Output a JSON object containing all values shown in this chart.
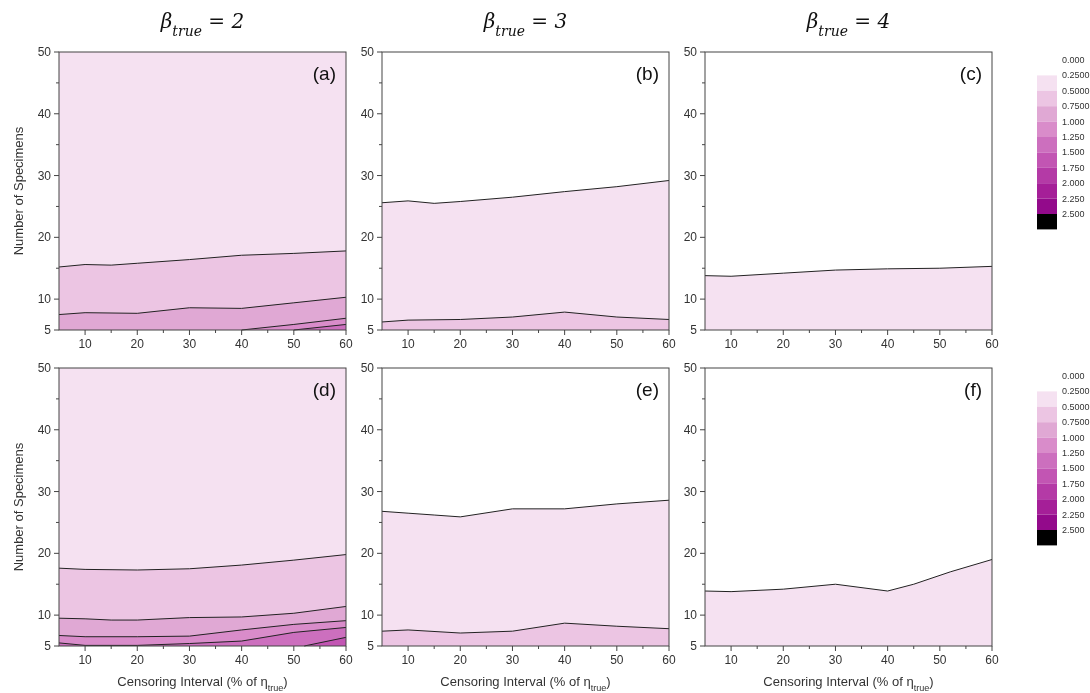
{
  "chart_data": [
    {
      "type": "area",
      "title": "β$_{true}$ = 2",
      "ylabel": "Number of Specimens",
      "annotations": [
        "(a)"
      ],
      "bands": [
        {
          "axis": "y",
          "from": 5,
          "to": 50,
          "color": "#f5e1f1"
        }
      ],
      "xlim": [
        5,
        60
      ],
      "xticks": [
        10,
        {
          "value": 15,
          "label": null
        },
        20,
        {
          "value": 25,
          "label": null
        },
        30,
        {
          "value": 35,
          "label": null
        },
        40,
        {
          "value": 45,
          "label": null
        },
        50,
        {
          "value": 55,
          "label": null
        },
        60
      ],
      "ylim": [
        5,
        50
      ],
      "yticks": [
        5,
        10,
        {
          "value": 15,
          "label": null
        },
        20,
        {
          "value": 25,
          "label": null
        },
        30,
        {
          "value": 35,
          "label": null
        },
        40,
        {
          "value": 45,
          "label": null
        },
        50
      ],
      "series": [
        {
          "color": "#ecc5e3",
          "x": [
            5,
            10,
            15,
            20,
            30,
            40,
            50,
            60
          ],
          "values": [
            15.2,
            15.6,
            15.5,
            15.8,
            16.4,
            17.1,
            17.4,
            17.8
          ]
        },
        {
          "color": "#e0a8d4",
          "x": [
            5,
            10,
            20,
            30,
            40,
            50,
            60
          ],
          "values": [
            7.5,
            7.8,
            7.7,
            8.6,
            8.5,
            9.4,
            10.3
          ]
        },
        {
          "color": "#d98cca",
          "x": [
            40,
            50,
            60
          ],
          "values": [
            5.0,
            5.9,
            6.9
          ]
        },
        {
          "color": "#cc6fbe",
          "x": [
            50,
            60
          ],
          "values": [
            5.0,
            5.9
          ]
        }
      ]
    },
    {
      "type": "area",
      "title": "β$_{true}$ = 3",
      "annotations": [
        "(b)"
      ],
      "xlim": [
        5,
        60
      ],
      "xticks": [
        10,
        {
          "value": 15,
          "label": null
        },
        20,
        {
          "value": 25,
          "label": null
        },
        30,
        {
          "value": 35,
          "label": null
        },
        40,
        {
          "value": 45,
          "label": null
        },
        50,
        {
          "value": 55,
          "label": null
        },
        60
      ],
      "ylim": [
        5,
        50
      ],
      "yticks": [
        5,
        10,
        {
          "value": 15,
          "label": null
        },
        20,
        {
          "value": 25,
          "label": null
        },
        30,
        {
          "value": 35,
          "label": null
        },
        40,
        {
          "value": 45,
          "label": null
        },
        50
      ],
      "series": [
        {
          "color": "#f5e1f1",
          "x": [
            5,
            10,
            15,
            20,
            30,
            40,
            50,
            60
          ],
          "values": [
            25.6,
            25.9,
            25.5,
            25.8,
            26.5,
            27.4,
            28.2,
            29.2
          ]
        },
        {
          "color": "#ecc5e3",
          "x": [
            5,
            10,
            20,
            30,
            40,
            50,
            60
          ],
          "values": [
            6.3,
            6.6,
            6.7,
            7.1,
            7.9,
            7.1,
            6.7
          ]
        }
      ]
    },
    {
      "type": "area",
      "title": "β$_{true}$ = 4",
      "annotations": [
        "(c)"
      ],
      "xlim": [
        5,
        60
      ],
      "xticks": [
        10,
        {
          "value": 15,
          "label": null
        },
        20,
        {
          "value": 25,
          "label": null
        },
        30,
        {
          "value": 35,
          "label": null
        },
        40,
        {
          "value": 45,
          "label": null
        },
        50,
        {
          "value": 55,
          "label": null
        },
        60
      ],
      "ylim": [
        5,
        50
      ],
      "yticks": [
        5,
        10,
        {
          "value": 15,
          "label": null
        },
        20,
        {
          "value": 25,
          "label": null
        },
        30,
        {
          "value": 35,
          "label": null
        },
        40,
        {
          "value": 45,
          "label": null
        },
        50
      ],
      "clim": [
        0,
        2.75
      ],
      "cticks": [
        {
          "value": 0,
          "label": "0.000"
        },
        {
          "value": 0.25,
          "label": "0.2500"
        },
        {
          "value": 0.5,
          "label": "0.5000"
        },
        {
          "value": 0.75,
          "label": "0.7500"
        },
        {
          "value": 1,
          "label": "1.000"
        },
        {
          "value": 1.25,
          "label": "1.250"
        },
        {
          "value": 1.5,
          "label": "1.500"
        },
        {
          "value": 1.75,
          "label": "1.750"
        },
        {
          "value": 2,
          "label": "2.000"
        },
        {
          "value": 2.25,
          "label": "2.250"
        },
        {
          "value": 2.5,
          "label": "2.500"
        }
      ],
      "series": [
        {
          "color": "#f5e1f1",
          "x": [
            5,
            10,
            20,
            30,
            40,
            50,
            60
          ],
          "values": [
            13.8,
            13.7,
            14.2,
            14.7,
            14.9,
            15.0,
            15.3
          ]
        }
      ]
    },
    {
      "type": "area",
      "xlabel": "Censoring Interval (% of η$_{true}$)",
      "ylabel": "Number of Specimens",
      "annotations": [
        "(d)"
      ],
      "bands": [
        {
          "axis": "y",
          "from": 5,
          "to": 50,
          "color": "#f5e1f1"
        }
      ],
      "xlim": [
        5,
        60
      ],
      "xticks": [
        10,
        {
          "value": 15,
          "label": null
        },
        20,
        {
          "value": 25,
          "label": null
        },
        30,
        {
          "value": 35,
          "label": null
        },
        40,
        {
          "value": 45,
          "label": null
        },
        50,
        {
          "value": 55,
          "label": null
        },
        60
      ],
      "ylim": [
        5,
        50
      ],
      "yticks": [
        5,
        10,
        {
          "value": 15,
          "label": null
        },
        20,
        {
          "value": 25,
          "label": null
        },
        30,
        {
          "value": 35,
          "label": null
        },
        40,
        {
          "value": 45,
          "label": null
        },
        50
      ],
      "series": [
        {
          "color": "#ecc5e3",
          "x": [
            5,
            10,
            20,
            30,
            40,
            50,
            60
          ],
          "values": [
            17.6,
            17.4,
            17.3,
            17.5,
            18.1,
            18.9,
            19.8
          ]
        },
        {
          "color": "#e0a8d4",
          "x": [
            5,
            10,
            15,
            20,
            30,
            40,
            50,
            60
          ],
          "values": [
            9.5,
            9.4,
            9.2,
            9.2,
            9.6,
            9.7,
            10.3,
            11.4
          ]
        },
        {
          "color": "#d98cca",
          "x": [
            5,
            10,
            20,
            30,
            40,
            50,
            60
          ],
          "values": [
            6.7,
            6.5,
            6.5,
            6.6,
            7.6,
            8.5,
            9.1
          ]
        },
        {
          "color": "#cc6fbe",
          "x": [
            5,
            10,
            20,
            30,
            40,
            50,
            60
          ],
          "values": [
            5.5,
            5.1,
            5.1,
            5.4,
            5.8,
            7.2,
            8.0
          ]
        },
        {
          "color": "#c255b3",
          "x": [
            52,
            60
          ],
          "values": [
            5.0,
            6.4
          ]
        }
      ]
    },
    {
      "type": "area",
      "xlabel": "Censoring Interval (% of η$_{true}$)",
      "annotations": [
        "(e)"
      ],
      "xlim": [
        5,
        60
      ],
      "xticks": [
        10,
        {
          "value": 15,
          "label": null
        },
        20,
        {
          "value": 25,
          "label": null
        },
        30,
        {
          "value": 35,
          "label": null
        },
        40,
        {
          "value": 45,
          "label": null
        },
        50,
        {
          "value": 55,
          "label": null
        },
        60
      ],
      "ylim": [
        5,
        50
      ],
      "yticks": [
        5,
        10,
        {
          "value": 15,
          "label": null
        },
        20,
        {
          "value": 25,
          "label": null
        },
        30,
        {
          "value": 35,
          "label": null
        },
        40,
        {
          "value": 45,
          "label": null
        },
        50
      ],
      "series": [
        {
          "color": "#f5e1f1",
          "x": [
            5,
            10,
            15,
            20,
            30,
            40,
            50,
            60
          ],
          "values": [
            26.8,
            26.5,
            26.2,
            25.9,
            27.2,
            27.2,
            28.0,
            28.6
          ]
        },
        {
          "color": "#ecc5e3",
          "x": [
            5,
            10,
            20,
            30,
            40,
            50,
            60
          ],
          "values": [
            7.4,
            7.6,
            7.1,
            7.4,
            8.7,
            8.2,
            7.8
          ]
        }
      ]
    },
    {
      "type": "area",
      "xlabel": "Censoring Interval (% of η$_{true}$)",
      "annotations": [
        "(f)"
      ],
      "xlim": [
        5,
        60
      ],
      "xticks": [
        10,
        {
          "value": 15,
          "label": null
        },
        20,
        {
          "value": 25,
          "label": null
        },
        30,
        {
          "value": 35,
          "label": null
        },
        40,
        {
          "value": 45,
          "label": null
        },
        50,
        {
          "value": 55,
          "label": null
        },
        60
      ],
      "ylim": [
        5,
        50
      ],
      "yticks": [
        5,
        10,
        {
          "value": 15,
          "label": null
        },
        20,
        {
          "value": 25,
          "label": null
        },
        30,
        {
          "value": 35,
          "label": null
        },
        40,
        {
          "value": 45,
          "label": null
        },
        50
      ],
      "clim": [
        0,
        2.75
      ],
      "cticks": [
        {
          "value": 0,
          "label": "0.000"
        },
        {
          "value": 0.25,
          "label": "0.2500"
        },
        {
          "value": 0.5,
          "label": "0.5000"
        },
        {
          "value": 0.75,
          "label": "0.7500"
        },
        {
          "value": 1,
          "label": "1.000"
        },
        {
          "value": 1.25,
          "label": "1.250"
        },
        {
          "value": 1.5,
          "label": "1.500"
        },
        {
          "value": 1.75,
          "label": "1.750"
        },
        {
          "value": 2,
          "label": "2.000"
        },
        {
          "value": 2.25,
          "label": "2.250"
        },
        {
          "value": 2.5,
          "label": "2.500"
        }
      ],
      "series": [
        {
          "color": "#f5e1f1",
          "x": [
            5,
            10,
            20,
            30,
            40,
            45,
            52,
            60
          ],
          "values": [
            13.9,
            13.8,
            14.2,
            15.0,
            13.9,
            15.0,
            17.0,
            19.0
          ]
        }
      ]
    }
  ]
}
